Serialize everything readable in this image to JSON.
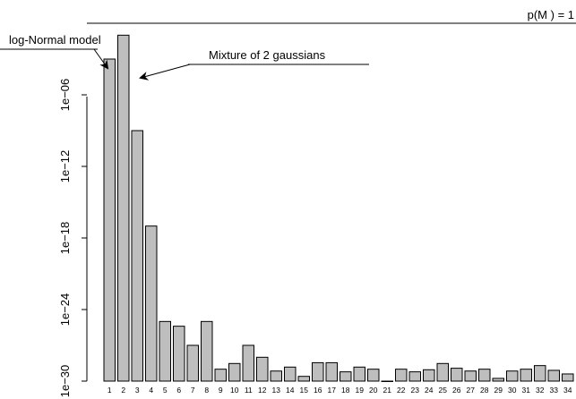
{
  "chart_data": {
    "type": "bar",
    "y_scale": "log",
    "ylim": [
      1e-30,
      1
    ],
    "yticks": [
      {
        "value": 1e-30,
        "label": "1e−30"
      },
      {
        "value": 1e-24,
        "label": "1e−24"
      },
      {
        "value": 1e-18,
        "label": "1e−18"
      },
      {
        "value": 1e-12,
        "label": "1e−12"
      },
      {
        "value": 1e-06,
        "label": "1e−06"
      }
    ],
    "categories": [
      "1",
      "2",
      "3",
      "4",
      "5",
      "6",
      "7",
      "8",
      "9",
      "10",
      "11",
      "12",
      "13",
      "14",
      "15",
      "16",
      "17",
      "18",
      "19",
      "20",
      "21",
      "22",
      "23",
      "24",
      "25",
      "26",
      "27",
      "28",
      "29",
      "30",
      "31",
      "32",
      "33",
      "34"
    ],
    "values": [
      0.001,
      0.1,
      1e-09,
      1e-17,
      1e-25,
      4e-26,
      1e-27,
      1e-25,
      1e-29,
      3e-29,
      1e-27,
      1e-28,
      7e-30,
      1.5e-29,
      2.5e-30,
      3.5e-29,
      3.5e-29,
      6e-30,
      1.5e-29,
      1e-29,
      1e-30,
      1e-29,
      6e-30,
      9e-30,
      3e-29,
      1.2e-29,
      7e-30,
      1e-29,
      1.7e-30,
      7e-30,
      1e-29,
      2e-29,
      8e-30,
      4e-30
    ],
    "annotations": [
      {
        "text": "log-Normal model",
        "target_category": "1"
      },
      {
        "text": "Mixture of 2 gaussians",
        "target_category": "2"
      }
    ],
    "reference_line": {
      "value": 1,
      "label": "p(M ) = 1"
    }
  }
}
